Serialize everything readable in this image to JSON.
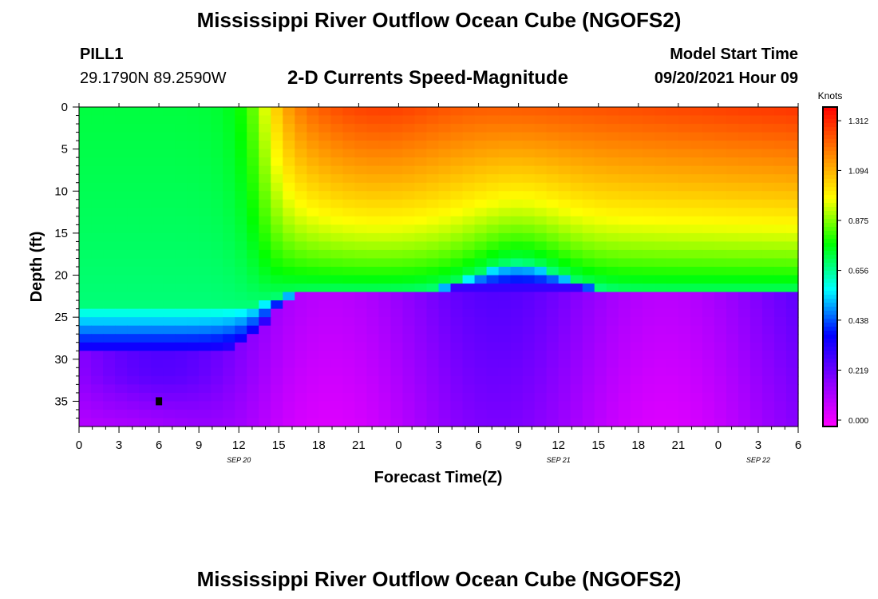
{
  "header": {
    "title": "Mississippi River Outflow Ocean Cube (NGOFS2)",
    "station": "PILL1",
    "coordinates": "29.1790N  89.2590W",
    "subtitle": "2-D Currents Speed-Magnitude",
    "model_start_label": "Model Start Time",
    "model_start_time": "09/20/2021 Hour 09"
  },
  "footer": {
    "title": "Mississippi River Outflow Ocean Cube (NGOFS2)"
  },
  "chart_data": {
    "type": "heatmap",
    "title": "2-D Currents Speed-Magnitude",
    "xlabel": "Forecast Time(Z)",
    "ylabel": "Depth (ft)",
    "x_tick_labels": [
      "0",
      "3",
      "6",
      "9",
      "12",
      "15",
      "18",
      "21",
      "0",
      "3",
      "6",
      "9",
      "12",
      "15",
      "18",
      "21",
      "0",
      "3",
      "6"
    ],
    "date_labels": [
      {
        "label": "SEP 20",
        "at_tick": 4
      },
      {
        "label": "SEP 21",
        "at_tick": 12
      },
      {
        "label": "SEP 22",
        "at_tick": 17
      }
    ],
    "y_ticks": [
      0,
      5,
      10,
      15,
      20,
      25,
      30,
      35
    ],
    "ylim": [
      0,
      38
    ],
    "xlim_hours": [
      0,
      54
    ],
    "colorbar": {
      "label": "Knots",
      "ticks": [
        "0.000",
        "0.219",
        "0.438",
        "0.656",
        "0.875",
        "1.094",
        "1.312"
      ],
      "range": [
        0,
        1.4
      ],
      "colors": [
        "#ff00ff",
        "#8800ff",
        "#0000ff",
        "#00ffff",
        "#00ff00",
        "#ffff00",
        "#ff8000",
        "#ff0000"
      ]
    },
    "description_values_knots": {
      "surface_early": 0.8,
      "surface_late_max": 1.35,
      "mid_layer_blue": 0.3,
      "bottom_min": 0.05
    },
    "marker": {
      "hour": 6,
      "depth_ft": 35
    }
  }
}
